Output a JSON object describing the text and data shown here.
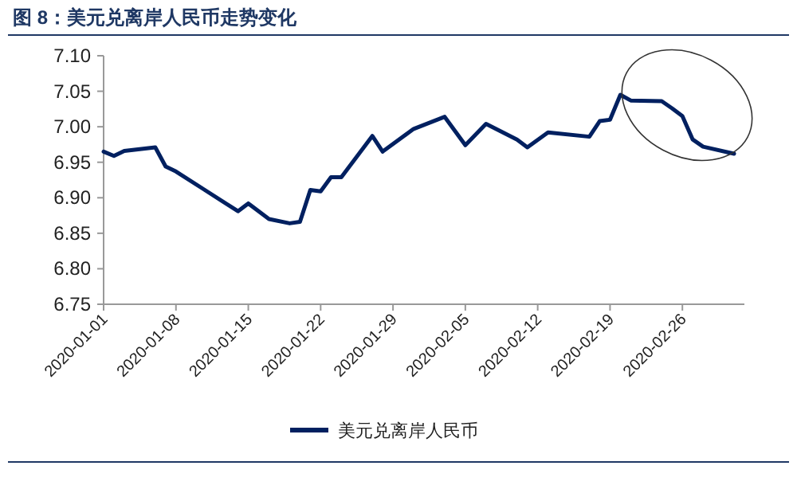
{
  "chart_data": {
    "type": "line",
    "title": "图 8：美元兑离岸人民币走势变化",
    "x": [
      "2020-01-01",
      "2020-01-02",
      "2020-01-03",
      "2020-01-06",
      "2020-01-07",
      "2020-01-08",
      "2020-01-14",
      "2020-01-15",
      "2020-01-17",
      "2020-01-19",
      "2020-01-20",
      "2020-01-21",
      "2020-01-22",
      "2020-01-23",
      "2020-01-24",
      "2020-01-27",
      "2020-01-28",
      "2020-01-31",
      "2020-02-03",
      "2020-02-05",
      "2020-02-07",
      "2020-02-10",
      "2020-02-11",
      "2020-02-13",
      "2020-02-17",
      "2020-02-18",
      "2020-02-19",
      "2020-02-20",
      "2020-02-21",
      "2020-02-24",
      "2020-02-25",
      "2020-02-26",
      "2020-02-27",
      "2020-02-28",
      "2020-03-02"
    ],
    "series": [
      {
        "name": "美元兑离岸人民币",
        "color": "#002060",
        "values": [
          6.965,
          6.959,
          6.966,
          6.971,
          6.944,
          6.937,
          6.881,
          6.892,
          6.87,
          6.864,
          6.866,
          6.911,
          6.909,
          6.929,
          6.929,
          6.987,
          6.965,
          6.997,
          7.014,
          6.974,
          7.004,
          6.982,
          6.971,
          6.992,
          6.986,
          7.008,
          7.01,
          7.045,
          7.037,
          7.036,
          7.026,
          7.015,
          6.982,
          6.972,
          6.962
        ]
      }
    ],
    "xlim": [
      "2020-01-01",
      "2020-03-03"
    ],
    "xticks": [
      {
        "value": "2020-01-01",
        "label": "2020-01-01"
      },
      {
        "value": "2020-01-08",
        "label": "2020-01-08"
      },
      {
        "value": "2020-01-15",
        "label": "2020-01-15"
      },
      {
        "value": "2020-01-22",
        "label": "2020-01-22"
      },
      {
        "value": "2020-01-29",
        "label": "2020-01-29"
      },
      {
        "value": "2020-02-05",
        "label": "2020-02-05"
      },
      {
        "value": "2020-02-12",
        "label": "2020-02-12"
      },
      {
        "value": "2020-02-19",
        "label": "2020-02-19"
      },
      {
        "value": "2020-02-26",
        "label": "2020-02-26"
      }
    ],
    "ylim": [
      6.75,
      7.1
    ],
    "yticks": [
      {
        "value": 6.75,
        "label": "6.75"
      },
      {
        "value": 6.8,
        "label": "6.80"
      },
      {
        "value": 6.85,
        "label": "6.85"
      },
      {
        "value": 6.9,
        "label": "6.90"
      },
      {
        "value": 6.95,
        "label": "6.95"
      },
      {
        "value": 7.0,
        "label": "7.00"
      },
      {
        "value": 7.05,
        "label": "7.05"
      },
      {
        "value": 7.1,
        "label": "7.10"
      }
    ],
    "legend": "bottom",
    "grid": false,
    "marker": "none",
    "line_style": "solid"
  }
}
